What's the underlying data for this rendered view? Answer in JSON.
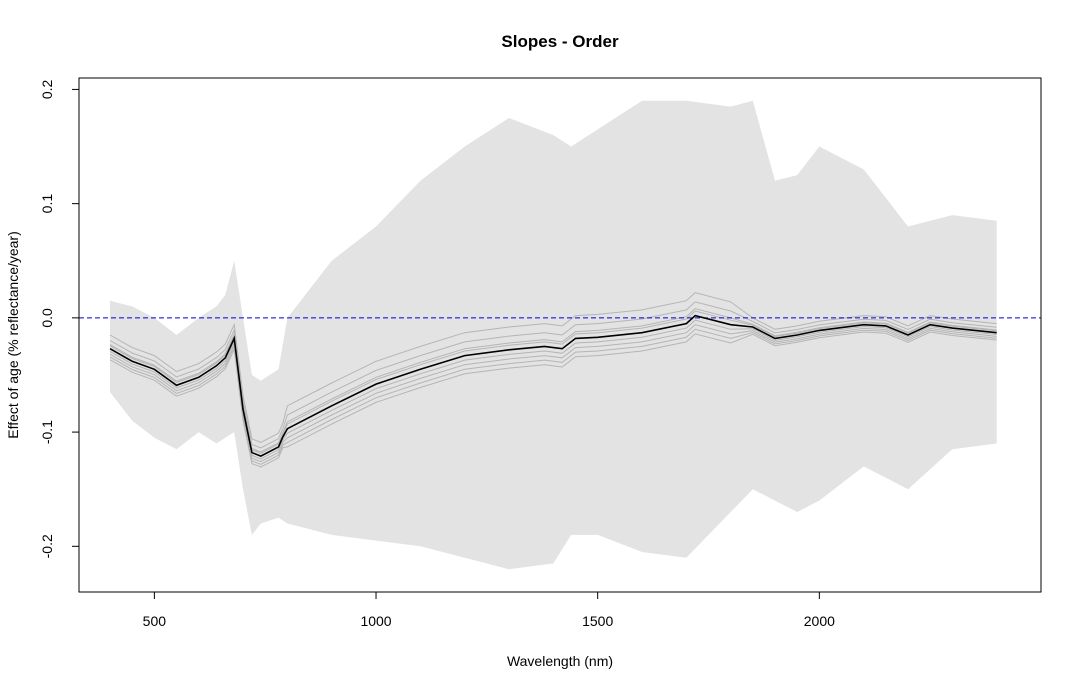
{
  "chart_data": {
    "type": "line",
    "title": "Slopes - Order",
    "xlabel": "Wavelength (nm)",
    "ylabel": "Effect of age (% reflectance/year)",
    "xlim": [
      330,
      2500
    ],
    "ylim": [
      -0.24,
      0.21
    ],
    "x_ticks": [
      500,
      1000,
      1500,
      2000
    ],
    "x_tick_labels": [
      "500",
      "1000",
      "1500",
      "2000"
    ],
    "y_ticks": [
      -0.2,
      -0.1,
      0.0,
      0.1,
      0.2
    ],
    "y_tick_labels": [
      "-0.2",
      "-0.1",
      "0.0",
      "0.1",
      "0.2"
    ],
    "grid": false,
    "reference_line": {
      "y": 0.0,
      "style": "dashed",
      "color": "#0000CC"
    },
    "colors": {
      "band": "#E3E3E3",
      "replicates": "#B5B5B5",
      "mean": "#000000"
    },
    "confidence_band": {
      "x": [
        400,
        450,
        500,
        550,
        600,
        640,
        660,
        680,
        700,
        720,
        740,
        780,
        800,
        900,
        1000,
        1100,
        1200,
        1300,
        1400,
        1440,
        1500,
        1600,
        1700,
        1800,
        1850,
        1900,
        1950,
        2000,
        2100,
        2200,
        2300,
        2400
      ],
      "upper": [
        0.015,
        0.01,
        0.0,
        -0.015,
        0.0,
        0.01,
        0.02,
        0.05,
        0.0,
        -0.05,
        -0.055,
        -0.045,
        0.0,
        0.05,
        0.08,
        0.12,
        0.15,
        0.175,
        0.16,
        0.15,
        0.165,
        0.19,
        0.19,
        0.185,
        0.19,
        0.12,
        0.125,
        0.15,
        0.13,
        0.08,
        0.09,
        0.085
      ],
      "lower": [
        -0.065,
        -0.09,
        -0.105,
        -0.115,
        -0.1,
        -0.11,
        -0.105,
        -0.1,
        -0.15,
        -0.19,
        -0.18,
        -0.175,
        -0.18,
        -0.19,
        -0.195,
        -0.2,
        -0.21,
        -0.22,
        -0.215,
        -0.19,
        -0.19,
        -0.205,
        -0.21,
        -0.17,
        -0.15,
        -0.16,
        -0.17,
        -0.16,
        -0.13,
        -0.15,
        -0.115,
        -0.11
      ]
    },
    "series": [
      {
        "x": [
          400,
          450,
          500,
          550,
          600,
          640,
          660,
          680,
          700,
          720,
          740,
          780,
          790,
          800,
          900,
          1000,
          1100,
          1200,
          1300,
          1380,
          1420,
          1450,
          1500,
          1600,
          1700,
          1720,
          1800,
          1850,
          1900,
          1950,
          2000,
          2100,
          2150,
          2200,
          2250,
          2300,
          2400
        ],
        "values": [
          -0.027,
          -0.038,
          -0.045,
          -0.059,
          -0.052,
          -0.042,
          -0.035,
          -0.018,
          -0.08,
          -0.118,
          -0.121,
          -0.113,
          -0.104,
          -0.097,
          -0.077,
          -0.058,
          -0.045,
          -0.033,
          -0.028,
          -0.025,
          -0.027,
          -0.018,
          -0.017,
          -0.013,
          -0.005,
          0.002,
          -0.006,
          -0.008,
          -0.018,
          -0.015,
          -0.011,
          -0.006,
          -0.007,
          -0.015,
          -0.006,
          -0.009,
          -0.013
        ]
      }
    ],
    "replicate_offsets": [
      0.012,
      0.02,
      0.006,
      -0.004,
      -0.008,
      -0.012,
      0.004,
      -0.016
    ]
  }
}
